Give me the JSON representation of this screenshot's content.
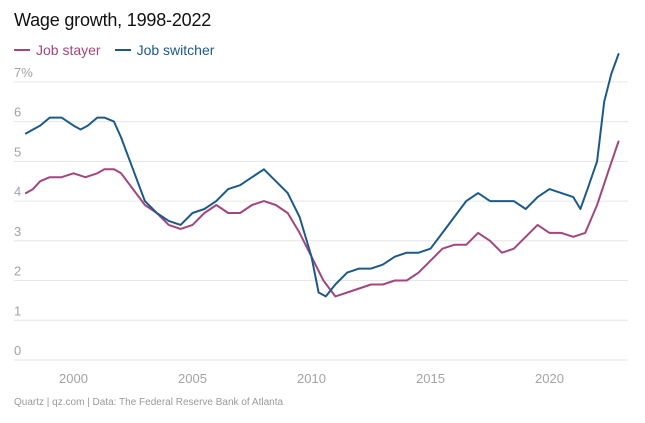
{
  "title": "Wage growth, 1998-2022",
  "source": "Quartz | qz.com | Data: The Federal Reserve Bank of Atlanta",
  "chart_data": {
    "type": "line",
    "title": "Wage growth, 1998-2022",
    "xlabel": "",
    "ylabel": "",
    "xlim": [
      1997.5,
      2023.3
    ],
    "ylim": [
      0,
      7.5
    ],
    "x_ticks": [
      2000,
      2005,
      2010,
      2015,
      2020
    ],
    "x_tick_labels": [
      "2000",
      "2005",
      "2010",
      "2015",
      "2020"
    ],
    "y_ticks": [
      0,
      1,
      2,
      3,
      4,
      5,
      6,
      7
    ],
    "y_tick_labels": [
      "0",
      "1",
      "2",
      "3",
      "4",
      "5",
      "6",
      "7%"
    ],
    "grid": "horizontal",
    "legend_position": "top-left",
    "series": [
      {
        "name": "Job stayer",
        "color": "#a3467e",
        "x": [
          1998.0,
          1998.3,
          1998.6,
          1999.0,
          1999.5,
          2000.0,
          2000.5,
          2001.0,
          2001.3,
          2001.7,
          2002.0,
          2002.5,
          2003.0,
          2003.5,
          2004.0,
          2004.5,
          2005.0,
          2005.5,
          2006.0,
          2006.5,
          2007.0,
          2007.5,
          2008.0,
          2008.5,
          2009.0,
          2009.5,
          2010.0,
          2010.5,
          2011.0,
          2011.5,
          2012.0,
          2012.5,
          2013.0,
          2013.5,
          2014.0,
          2014.5,
          2015.0,
          2015.5,
          2016.0,
          2016.5,
          2017.0,
          2017.5,
          2018.0,
          2018.5,
          2019.0,
          2019.5,
          2020.0,
          2020.5,
          2021.0,
          2021.5,
          2022.0,
          2022.5,
          2022.9
        ],
        "values": [
          4.2,
          4.3,
          4.5,
          4.6,
          4.6,
          4.7,
          4.6,
          4.7,
          4.8,
          4.8,
          4.7,
          4.3,
          3.9,
          3.7,
          3.4,
          3.3,
          3.4,
          3.7,
          3.9,
          3.7,
          3.7,
          3.9,
          4.0,
          3.9,
          3.7,
          3.2,
          2.6,
          2.0,
          1.6,
          1.7,
          1.8,
          1.9,
          1.9,
          2.0,
          2.0,
          2.2,
          2.5,
          2.8,
          2.9,
          2.9,
          3.2,
          3.0,
          2.7,
          2.8,
          3.1,
          3.4,
          3.2,
          3.2,
          3.1,
          3.2,
          3.9,
          4.8,
          5.5
        ]
      },
      {
        "name": "Job switcher",
        "color": "#1d5a8c",
        "x": [
          1998.0,
          1998.3,
          1998.6,
          1999.0,
          1999.5,
          2000.0,
          2000.3,
          2000.6,
          2001.0,
          2001.3,
          2001.7,
          2002.0,
          2002.5,
          2003.0,
          2003.5,
          2004.0,
          2004.5,
          2005.0,
          2005.5,
          2006.0,
          2006.5,
          2007.0,
          2007.5,
          2008.0,
          2008.5,
          2009.0,
          2009.5,
          2010.0,
          2010.3,
          2010.6,
          2011.0,
          2011.5,
          2012.0,
          2012.5,
          2013.0,
          2013.5,
          2014.0,
          2014.5,
          2015.0,
          2015.5,
          2016.0,
          2016.5,
          2017.0,
          2017.5,
          2018.0,
          2018.5,
          2019.0,
          2019.5,
          2020.0,
          2020.5,
          2021.0,
          2021.3,
          2021.6,
          2022.0,
          2022.3,
          2022.6,
          2022.9
        ],
        "values": [
          5.7,
          5.8,
          5.9,
          6.1,
          6.1,
          5.9,
          5.8,
          5.9,
          6.1,
          6.1,
          6.0,
          5.6,
          4.8,
          4.0,
          3.7,
          3.5,
          3.4,
          3.7,
          3.8,
          4.0,
          4.3,
          4.4,
          4.6,
          4.8,
          4.5,
          4.2,
          3.6,
          2.6,
          1.7,
          1.6,
          1.9,
          2.2,
          2.3,
          2.3,
          2.4,
          2.6,
          2.7,
          2.7,
          2.8,
          3.2,
          3.6,
          4.0,
          4.2,
          4.0,
          4.0,
          4.0,
          3.8,
          4.1,
          4.3,
          4.2,
          4.1,
          3.8,
          4.3,
          5.0,
          6.5,
          7.2,
          7.7
        ]
      }
    ]
  }
}
